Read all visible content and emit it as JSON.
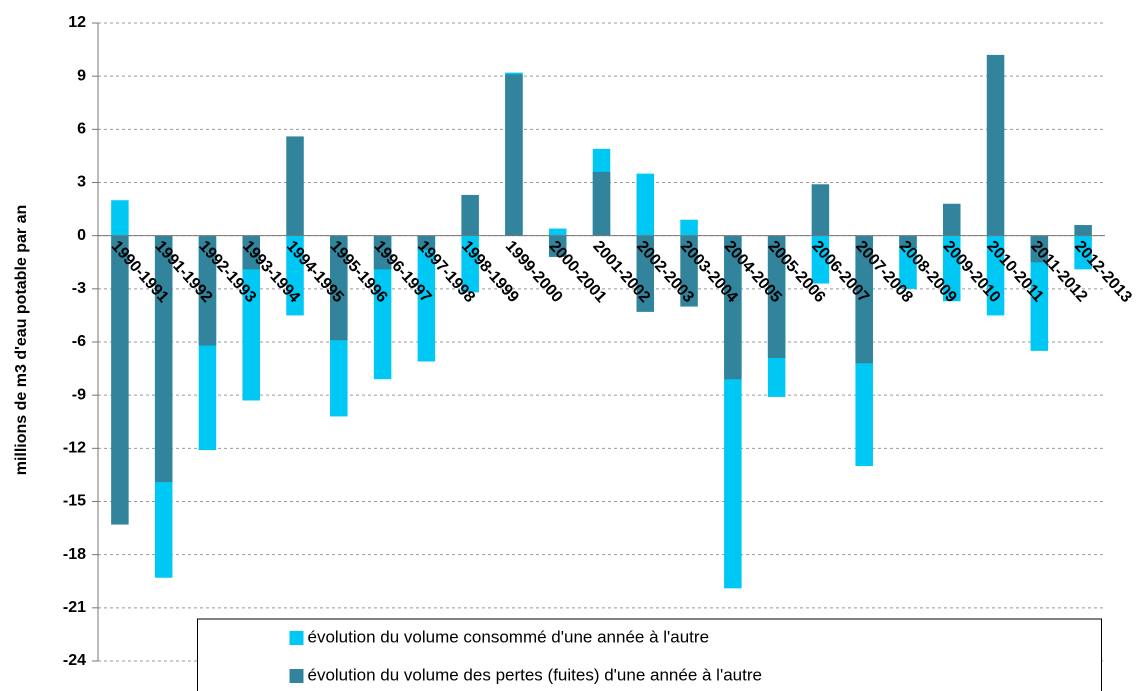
{
  "chart_data": {
    "type": "bar",
    "ylabel": "millions de m3 d'eau potable par an",
    "categories": [
      "1990-1991",
      "1991-1992",
      "1992-1993",
      "1993-1994",
      "1994-1995",
      "1995-1996",
      "1996-1997",
      "1997-1998",
      "1998-1999",
      "1999-2000",
      "2000-2001",
      "2001-2002",
      "2002-2003",
      "2003-2004",
      "2004-2005",
      "2005-2006",
      "2006-2007",
      "2007-2008",
      "2008-2009",
      "2009-2010",
      "2010-2011",
      "2011-2012",
      "2012-2013"
    ],
    "series": [
      {
        "name": "évolution du volume consommé d'une année à l'autre",
        "color": "#00c8f5",
        "values": [
          2.0,
          -19.3,
          -12.1,
          -9.3,
          -4.5,
          -10.2,
          -8.1,
          -7.1,
          -3.2,
          9.2,
          0.4,
          4.9,
          3.5,
          0.9,
          -19.9,
          -9.1,
          -2.7,
          -13.0,
          -3.0,
          -3.7,
          -4.5,
          -6.5,
          -1.9
        ]
      },
      {
        "name": "évolution du volume des pertes (fuites) d'une année à l'autre",
        "color": "#31849b",
        "values": [
          -16.3,
          -13.9,
          -6.2,
          -1.9,
          5.6,
          -5.9,
          -1.9,
          -0.8,
          2.3,
          9.1,
          -1.2,
          3.6,
          -4.3,
          -4.0,
          -8.1,
          -6.9,
          2.9,
          -7.2,
          -0.7,
          1.8,
          10.2,
          -1.5,
          0.6
        ]
      }
    ],
    "ylim": [
      -24,
      12
    ],
    "yticks": [
      -24,
      -21,
      -18,
      -15,
      -12,
      -9,
      -6,
      -3,
      0,
      3,
      6,
      9,
      12
    ],
    "grid": true,
    "legend": "lower center"
  }
}
